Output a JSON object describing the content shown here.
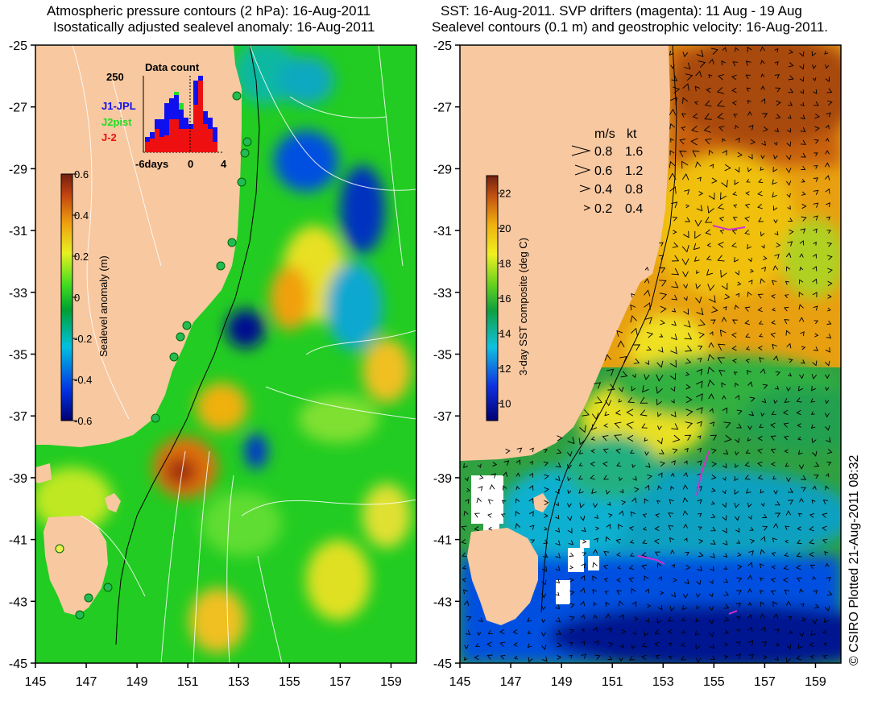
{
  "left_panel": {
    "title_line1": "Atmospheric pressure contours (2 hPa): 16-Aug-2011",
    "title_line2": "Isostatically adjusted sealevel anomaly: 16-Aug-2011",
    "colorbar_label": "Sealevel anomaly (m)",
    "colorbar_ticks": [
      "0.6",
      "0.4",
      "0.2",
      "0",
      "-0.2",
      "-0.4",
      "-0.6"
    ],
    "colorbar_range": [
      -0.6,
      0.6
    ],
    "histogram": {
      "title": "Data count",
      "ymax_label": "250",
      "x_ticks": [
        "-6days",
        "0",
        "4"
      ],
      "legend": [
        {
          "label": "J1-JPL",
          "color": "#1010ee"
        },
        {
          "label": "J2pist",
          "color": "#22dd22"
        },
        {
          "label": "J-2",
          "color": "#ee1010"
        }
      ]
    }
  },
  "right_panel": {
    "title_line1": "SST: 16-Aug-2011. SVP drifters (magenta): 11 Aug - 19 Aug",
    "title_line2": "Sealevel contours (0.1 m) and geostrophic velocity: 16-Aug-2011.",
    "colorbar_label": "3-day SST composite (deg C)",
    "colorbar_ticks": [
      "22",
      "20",
      "18",
      "16",
      "14",
      "12",
      "10"
    ],
    "colorbar_range": [
      9,
      23
    ],
    "speed_legend": {
      "header_ms": "m/s",
      "header_kt": "kt",
      "rows": [
        {
          "ms": "0.8",
          "kt": "1.6"
        },
        {
          "ms": "0.6",
          "kt": "1.2"
        },
        {
          "ms": "0.4",
          "kt": "0.8"
        },
        {
          "ms": "0.2",
          "kt": "0.4"
        }
      ]
    }
  },
  "axes": {
    "y_ticks": [
      "-25",
      "-27",
      "-29",
      "-31",
      "-33",
      "-35",
      "-37",
      "-39",
      "-41",
      "-43",
      "-45"
    ],
    "x_ticks": [
      "145",
      "147",
      "149",
      "151",
      "153",
      "155",
      "157",
      "159"
    ],
    "lat_range": [
      -45,
      -25
    ],
    "lon_range": [
      145,
      160
    ]
  },
  "credit": "© CSIRO Plotted 21-Aug-2011 08:32",
  "colors": {
    "land": "#f8c8a0",
    "anomaly_base": "#22cc22",
    "sst_warm": "#e89010",
    "sst_cool": "#2060e0"
  }
}
